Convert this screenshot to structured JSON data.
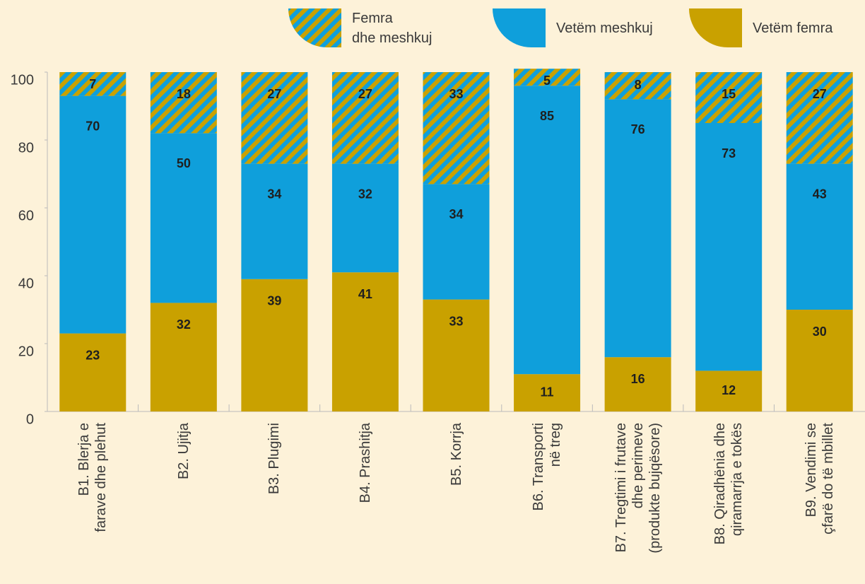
{
  "chart_data": {
    "type": "stacked_bar",
    "categories": [
      "B1. Blerja e\nfarave dhe plehut",
      "B2. Ujitja",
      "B3. Plugimi",
      "B4. Prashitja",
      "B5. Korrja",
      "B6. Transporti\nnë treg",
      "B7. Tregtimi i frutave\ndhe perimeve\n(produkte bujqësore)",
      "B8. Qiradhënia dhe\nqiramarrja e tokës",
      "B9. Vendimi se\nçfarë do të mbillet"
    ],
    "series": [
      {
        "name": "Vetëm femra",
        "color": "#c9a100",
        "values": [
          23,
          32,
          39,
          41,
          33,
          11,
          16,
          12,
          30
        ]
      },
      {
        "name": "Vetëm meshkuj",
        "color": "#0f9fdb",
        "values": [
          70,
          50,
          34,
          32,
          34,
          85,
          76,
          73,
          43
        ]
      },
      {
        "name": "Femra\ndhe meshkuj",
        "color": "#c9a100",
        "hatch_color": "#0f9fdb",
        "values": [
          7,
          18,
          27,
          27,
          33,
          5,
          8,
          15,
          27
        ]
      }
    ],
    "ylim": [
      0,
      100
    ],
    "yticks": [
      0,
      20,
      40,
      60,
      80,
      100
    ],
    "grid": false,
    "legend": "top"
  }
}
